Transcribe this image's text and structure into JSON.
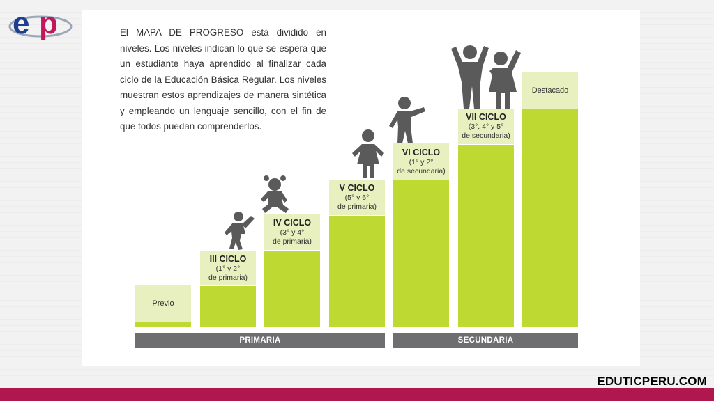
{
  "logo": {
    "text": "ep"
  },
  "intro": "El MAPA DE PROGRESO está dividido en niveles. Los niveles indican lo que se espera que un estudiante haya aprendido al finalizar cada ciclo de la Educación Básica Regular. Los niveles muestran estos aprendizajes de manera sintética y empleando un lenguaje sencillo, con el fin de que todos puedan comprenderlos.",
  "steps": [
    {
      "title": "",
      "line1": "Previo",
      "line2": ""
    },
    {
      "title": "III CICLO",
      "line1": "(1° y 2°",
      "line2": "de primaria)"
    },
    {
      "title": "IV CICLO",
      "line1": "(3° y 4°",
      "line2": "de primaria)"
    },
    {
      "title": "V CICLO",
      "line1": "(5° y 6°",
      "line2": "de primaria)"
    },
    {
      "title": "VI CICLO",
      "line1": "(1° y 2°",
      "line2": "de secundaria)"
    },
    {
      "title": "VII CICLO",
      "line1": "(3°, 4° y 5°",
      "line2": "de secundaria)"
    },
    {
      "title": "",
      "line1": "Destacado",
      "line2": ""
    }
  ],
  "bands": {
    "primaria": "PRIMARIA",
    "secundaria": "SECUNDARIA"
  },
  "colors": {
    "bar": "#bed932",
    "label_bg": "#e8f0bf",
    "band": "#6e6e70",
    "footer": "#b0174f",
    "figure": "#5a5a5a",
    "logo_blue": "#1c3f8f",
    "logo_pink": "#c2185b"
  },
  "icons": [
    "child-raising-arm-icon",
    "girl-sitting-icon",
    "girl-standing-icon",
    "child-pointing-icon",
    "two-children-cheering-icon"
  ],
  "footer": {
    "site": "EDUTICPERU.COM"
  }
}
